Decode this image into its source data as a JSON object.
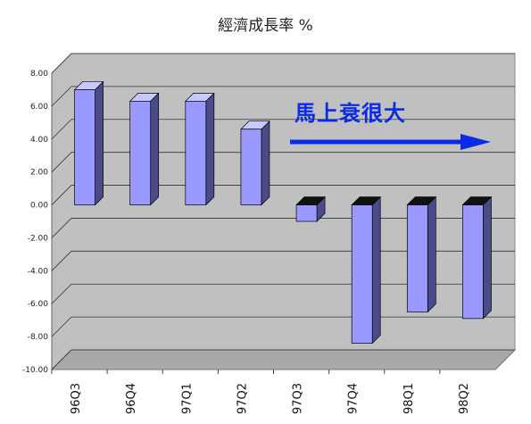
{
  "chart_data": {
    "type": "bar",
    "title": "經濟成長率 %",
    "xlabel": "",
    "ylabel": "",
    "categories": [
      "96Q3",
      "96Q4",
      "97Q1",
      "97Q2",
      "97Q3",
      "97Q4",
      "98Q1",
      "98Q2"
    ],
    "values": [
      7.0,
      6.3,
      6.3,
      4.6,
      -1.0,
      -8.4,
      -6.5,
      -6.9
    ],
    "ylim": [
      -10,
      8
    ],
    "yticks": [
      "8.00",
      "6.00",
      "4.00",
      "2.00",
      "0.00",
      "-2.00",
      "-4.00",
      "-6.00",
      "-8.00",
      "-10.00"
    ],
    "grid": true,
    "style": "3d-column",
    "colors": {
      "bar": "#9999ff",
      "bar_side": "#4b4b8a",
      "bar_top": "#c8c8ff",
      "wall": "#c0c0c0",
      "arrow": "#0a2be6",
      "annotation": "#0a2be6"
    },
    "annotation": "馬上衰很大"
  }
}
